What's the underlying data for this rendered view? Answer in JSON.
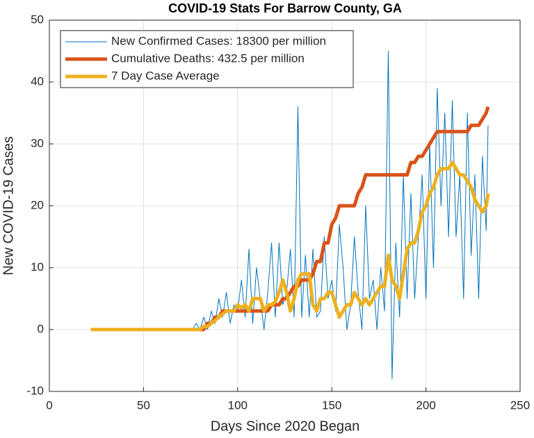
{
  "chart_data": {
    "type": "line",
    "title": "COVID-19 Stats For Barrow County, GA",
    "x_label": "Days Since 2020 Began",
    "y_label": "New COVID-19 Cases",
    "x": [
      22,
      76,
      78,
      80,
      82,
      84,
      86,
      88,
      90,
      92,
      94,
      96,
      98,
      100,
      102,
      104,
      106,
      108,
      110,
      112,
      114,
      116,
      118,
      120,
      122,
      124,
      126,
      128,
      130,
      132,
      134,
      136,
      138,
      140,
      142,
      144,
      146,
      148,
      150,
      152,
      154,
      156,
      158,
      160,
      162,
      164,
      166,
      168,
      170,
      172,
      174,
      176,
      178,
      180,
      182,
      184,
      186,
      188,
      190,
      192,
      194,
      196,
      198,
      200,
      202,
      204,
      206,
      208,
      210,
      212,
      214,
      216,
      218,
      220,
      222,
      224,
      226,
      228,
      230,
      232,
      233
    ],
    "series": [
      {
        "name": "New Confirmed Cases: 18300 per million",
        "color": "#0072bd",
        "width": 1,
        "values": [
          0,
          0,
          1,
          0,
          2,
          0,
          3,
          1,
          5,
          2,
          6,
          1,
          4,
          3,
          8,
          2,
          13,
          1,
          10,
          5,
          0,
          6,
          14,
          2,
          14,
          4,
          6,
          13,
          2,
          36,
          2,
          12,
          2,
          13,
          2,
          3,
          15,
          5,
          8,
          3,
          17,
          10,
          0,
          4,
          15,
          6,
          0,
          20,
          5,
          8,
          0,
          10,
          3,
          45,
          -8,
          14,
          2,
          25,
          5,
          22,
          5,
          15,
          25,
          5,
          30,
          10,
          39,
          20,
          35,
          15,
          37,
          15,
          25,
          5,
          35,
          12,
          25,
          5,
          28,
          16,
          33
        ]
      },
      {
        "name": "Cumulative Deaths: 432.5 per million",
        "color": "#d95319",
        "width": 5,
        "values": [
          0,
          0,
          0,
          0,
          0,
          1,
          1,
          2,
          2,
          3,
          3,
          3,
          3,
          3,
          3,
          3,
          3,
          3,
          3,
          3,
          3,
          3,
          4,
          4,
          4,
          5,
          5,
          6,
          7,
          7,
          8,
          8,
          8,
          9,
          11,
          11,
          14,
          14,
          17,
          18,
          20,
          20,
          20,
          20,
          20,
          22,
          23,
          25,
          25,
          25,
          25,
          25,
          25,
          25,
          25,
          25,
          25,
          25,
          25,
          27,
          27,
          28,
          28,
          29,
          30,
          31,
          32,
          32,
          32,
          32,
          32,
          32,
          32,
          32,
          32,
          33,
          33,
          33,
          34,
          35,
          36
        ]
      },
      {
        "name": "7 Day Case Average",
        "color": "#edb120",
        "width": 5,
        "values": [
          0,
          0,
          0,
          0,
          0.5,
          0.5,
          1,
          1.5,
          2,
          2.5,
          3,
          3,
          3,
          4,
          3.5,
          4,
          3,
          5,
          5,
          5,
          3,
          4,
          4,
          4.5,
          6,
          8,
          6,
          3,
          5,
          8,
          9,
          9,
          9,
          4,
          3,
          5,
          5,
          6,
          6,
          4,
          2,
          3,
          4,
          4,
          6,
          5,
          4,
          5,
          4,
          5,
          6,
          7,
          7,
          12,
          8,
          7,
          5,
          9,
          13,
          14,
          14,
          16,
          19,
          20,
          22,
          23,
          25,
          26,
          26,
          26,
          27,
          26,
          25,
          25,
          24,
          23,
          21,
          20,
          19,
          20,
          22
        ]
      }
    ],
    "xlim": [
      0,
      250
    ],
    "xticks": [
      0,
      50,
      100,
      150,
      200,
      250
    ],
    "ylim": [
      -10,
      50
    ],
    "yticks": [
      -10,
      0,
      10,
      20,
      30,
      40,
      50
    ],
    "grid": true,
    "legend_position": "upper-left"
  }
}
